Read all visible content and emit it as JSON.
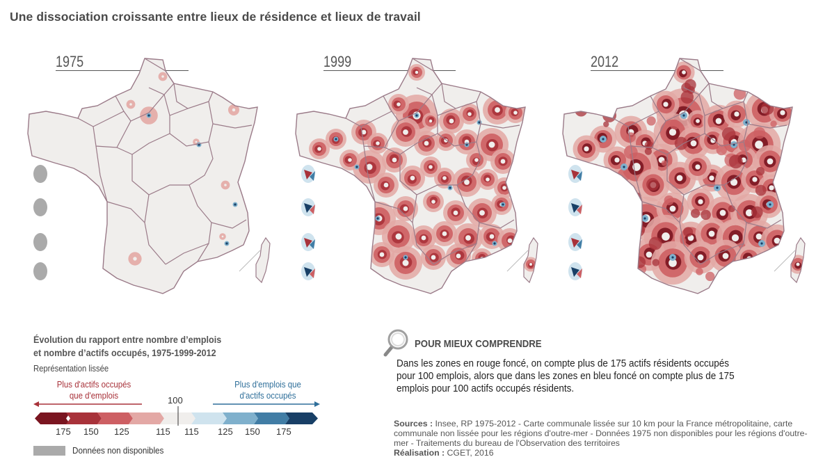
{
  "title": "Une dissociation croissante entre lieux de résidence et lieux de travail",
  "maps": [
    {
      "year": "1975",
      "intensity": 0
    },
    {
      "year": "1999",
      "intensity": 1
    },
    {
      "year": "2012",
      "intensity": 2
    }
  ],
  "legend": {
    "title_line1": "Évolution du rapport entre nombre d’emplois",
    "title_line2": "et nombre d’actifs occupés, 1975-1999-2012",
    "subtitle": "Représentation lissée",
    "left_label_line1": "Plus d'actifs occupés",
    "left_label_line2": "que d'emplois",
    "right_label_line1": "Plus d'emplois que",
    "right_label_line2": "d'actifs occupés",
    "center_value": "100",
    "ticks_left": [
      "175",
      "150",
      "125",
      "115"
    ],
    "ticks_right": [
      "115",
      "125",
      "150",
      "175"
    ],
    "colors": [
      "#7a1520",
      "#a8323a",
      "#cd5f63",
      "#e3a8a5",
      "#f0eeec",
      "#cfe3ee",
      "#7fb0cc",
      "#417da5",
      "#183f66"
    ],
    "nd_color": "#aaaaaa",
    "nd_label": "Données non disponibles"
  },
  "comprendre": {
    "heading": "POUR MIEUX COMPRENDRE",
    "text": "Dans les zones en rouge foncé, on compte plus de 175 actifs résidents occupés pour 100 emplois,  alors que dans les zones en bleu foncé on compte plus de 175 emplois pour 100 actifs occupés résidents."
  },
  "sources": {
    "sources_label": "Sources :",
    "sources_text": "Insee, RP 1975-2012 - Carte communale lissée sur 10 km pour la France métropolitaine, carte communale non lissée pour les régions d'outre-mer - Données 1975 non disponibles pour les régions d'outre-mer - Traitements du bureau de l'Observation des territoires",
    "realisation_label": "Réalisation :",
    "realisation_text": "CGET, 2016"
  }
}
